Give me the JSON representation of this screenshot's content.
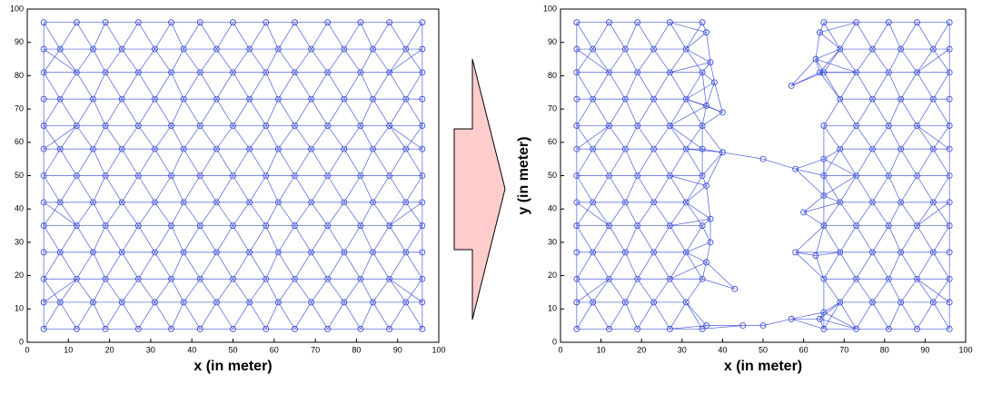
{
  "chart_data": [
    {
      "type": "scatter",
      "xlabel": "x (in meter)",
      "color": "#2b3fd6",
      "xlim": [
        0,
        100
      ],
      "xticks": [
        0,
        10,
        20,
        30,
        40,
        50,
        60,
        70,
        80,
        90,
        100
      ],
      "ylim": [
        0,
        100
      ],
      "yticks": [
        0,
        10,
        20,
        30,
        40,
        50,
        60,
        70,
        80,
        90,
        100
      ],
      "points": [
        [
          4,
          4
        ],
        [
          12,
          4
        ],
        [
          19,
          4
        ],
        [
          27,
          4
        ],
        [
          35,
          4
        ],
        [
          42,
          4
        ],
        [
          50,
          4
        ],
        [
          58,
          4
        ],
        [
          65,
          4
        ],
        [
          73,
          4
        ],
        [
          81,
          4
        ],
        [
          88,
          4
        ],
        [
          96,
          4
        ],
        [
          4,
          12
        ],
        [
          8,
          12
        ],
        [
          16,
          12
        ],
        [
          23,
          12
        ],
        [
          31,
          12
        ],
        [
          38,
          12
        ],
        [
          46,
          12
        ],
        [
          54,
          12
        ],
        [
          61,
          12
        ],
        [
          69,
          12
        ],
        [
          77,
          12
        ],
        [
          84,
          12
        ],
        [
          92,
          12
        ],
        [
          96,
          12
        ],
        [
          4,
          19
        ],
        [
          12,
          19
        ],
        [
          19,
          19
        ],
        [
          27,
          19
        ],
        [
          35,
          19
        ],
        [
          42,
          19
        ],
        [
          50,
          19
        ],
        [
          58,
          19
        ],
        [
          65,
          19
        ],
        [
          73,
          19
        ],
        [
          81,
          19
        ],
        [
          88,
          19
        ],
        [
          96,
          19
        ],
        [
          4,
          27
        ],
        [
          8,
          27
        ],
        [
          16,
          27
        ],
        [
          23,
          27
        ],
        [
          31,
          27
        ],
        [
          38,
          27
        ],
        [
          46,
          27
        ],
        [
          54,
          27
        ],
        [
          61,
          27
        ],
        [
          69,
          27
        ],
        [
          77,
          27
        ],
        [
          84,
          27
        ],
        [
          92,
          27
        ],
        [
          96,
          27
        ],
        [
          4,
          35
        ],
        [
          12,
          35
        ],
        [
          19,
          35
        ],
        [
          27,
          35
        ],
        [
          35,
          35
        ],
        [
          42,
          35
        ],
        [
          50,
          35
        ],
        [
          58,
          35
        ],
        [
          65,
          35
        ],
        [
          73,
          35
        ],
        [
          81,
          35
        ],
        [
          88,
          35
        ],
        [
          96,
          35
        ],
        [
          4,
          42
        ],
        [
          8,
          42
        ],
        [
          16,
          42
        ],
        [
          23,
          42
        ],
        [
          31,
          42
        ],
        [
          38,
          42
        ],
        [
          46,
          42
        ],
        [
          54,
          42
        ],
        [
          61,
          42
        ],
        [
          69,
          42
        ],
        [
          77,
          42
        ],
        [
          84,
          42
        ],
        [
          92,
          42
        ],
        [
          96,
          42
        ],
        [
          4,
          50
        ],
        [
          12,
          50
        ],
        [
          19,
          50
        ],
        [
          27,
          50
        ],
        [
          35,
          50
        ],
        [
          42,
          50
        ],
        [
          50,
          50
        ],
        [
          58,
          50
        ],
        [
          65,
          50
        ],
        [
          73,
          50
        ],
        [
          81,
          50
        ],
        [
          88,
          50
        ],
        [
          96,
          50
        ],
        [
          4,
          58
        ],
        [
          8,
          58
        ],
        [
          16,
          58
        ],
        [
          23,
          58
        ],
        [
          31,
          58
        ],
        [
          38,
          58
        ],
        [
          46,
          58
        ],
        [
          54,
          58
        ],
        [
          61,
          58
        ],
        [
          69,
          58
        ],
        [
          77,
          58
        ],
        [
          84,
          58
        ],
        [
          92,
          58
        ],
        [
          96,
          58
        ],
        [
          4,
          65
        ],
        [
          12,
          65
        ],
        [
          19,
          65
        ],
        [
          27,
          65
        ],
        [
          35,
          65
        ],
        [
          42,
          65
        ],
        [
          50,
          65
        ],
        [
          58,
          65
        ],
        [
          65,
          65
        ],
        [
          73,
          65
        ],
        [
          81,
          65
        ],
        [
          88,
          65
        ],
        [
          96,
          65
        ],
        [
          4,
          73
        ],
        [
          8,
          73
        ],
        [
          16,
          73
        ],
        [
          23,
          73
        ],
        [
          31,
          73
        ],
        [
          38,
          73
        ],
        [
          46,
          73
        ],
        [
          54,
          73
        ],
        [
          61,
          73
        ],
        [
          69,
          73
        ],
        [
          77,
          73
        ],
        [
          84,
          73
        ],
        [
          92,
          73
        ],
        [
          96,
          73
        ],
        [
          4,
          81
        ],
        [
          12,
          81
        ],
        [
          19,
          81
        ],
        [
          27,
          81
        ],
        [
          35,
          81
        ],
        [
          42,
          81
        ],
        [
          50,
          81
        ],
        [
          58,
          81
        ],
        [
          65,
          81
        ],
        [
          73,
          81
        ],
        [
          81,
          81
        ],
        [
          88,
          81
        ],
        [
          96,
          81
        ],
        [
          4,
          88
        ],
        [
          8,
          88
        ],
        [
          16,
          88
        ],
        [
          23,
          88
        ],
        [
          31,
          88
        ],
        [
          38,
          88
        ],
        [
          46,
          88
        ],
        [
          54,
          88
        ],
        [
          61,
          88
        ],
        [
          69,
          88
        ],
        [
          77,
          88
        ],
        [
          84,
          88
        ],
        [
          92,
          88
        ],
        [
          96,
          88
        ],
        [
          4,
          96
        ],
        [
          12,
          96
        ],
        [
          19,
          96
        ],
        [
          27,
          96
        ],
        [
          35,
          96
        ],
        [
          42,
          96
        ],
        [
          50,
          96
        ],
        [
          58,
          96
        ],
        [
          65,
          96
        ],
        [
          73,
          96
        ],
        [
          81,
          96
        ],
        [
          88,
          96
        ],
        [
          96,
          96
        ]
      ]
    },
    {
      "type": "scatter",
      "xlabel": "x (in meter)",
      "ylabel": "y (in meter)",
      "color": "#2b3fd6",
      "xlim": [
        0,
        100
      ],
      "xticks": [
        0,
        10,
        20,
        30,
        40,
        50,
        60,
        70,
        80,
        90,
        100
      ],
      "ylim": [
        0,
        100
      ],
      "yticks": [
        0,
        10,
        20,
        30,
        40,
        50,
        60,
        70,
        80,
        90,
        100
      ],
      "points": [
        [
          4,
          4
        ],
        [
          12,
          4
        ],
        [
          19,
          4
        ],
        [
          27,
          4
        ],
        [
          35,
          4
        ],
        [
          65,
          4
        ],
        [
          73,
          4
        ],
        [
          81,
          4
        ],
        [
          88,
          4
        ],
        [
          96,
          4
        ],
        [
          4,
          12
        ],
        [
          8,
          12
        ],
        [
          16,
          12
        ],
        [
          23,
          12
        ],
        [
          31,
          12
        ],
        [
          69,
          12
        ],
        [
          77,
          12
        ],
        [
          84,
          12
        ],
        [
          92,
          12
        ],
        [
          96,
          12
        ],
        [
          4,
          19
        ],
        [
          12,
          19
        ],
        [
          19,
          19
        ],
        [
          27,
          19
        ],
        [
          35,
          19
        ],
        [
          65,
          19
        ],
        [
          73,
          19
        ],
        [
          81,
          19
        ],
        [
          88,
          19
        ],
        [
          96,
          19
        ],
        [
          4,
          27
        ],
        [
          8,
          27
        ],
        [
          16,
          27
        ],
        [
          23,
          27
        ],
        [
          31,
          27
        ],
        [
          69,
          27
        ],
        [
          77,
          27
        ],
        [
          84,
          27
        ],
        [
          92,
          27
        ],
        [
          96,
          27
        ],
        [
          4,
          35
        ],
        [
          12,
          35
        ],
        [
          19,
          35
        ],
        [
          27,
          35
        ],
        [
          35,
          35
        ],
        [
          65,
          35
        ],
        [
          73,
          35
        ],
        [
          81,
          35
        ],
        [
          88,
          35
        ],
        [
          96,
          35
        ],
        [
          4,
          42
        ],
        [
          8,
          42
        ],
        [
          16,
          42
        ],
        [
          23,
          42
        ],
        [
          31,
          42
        ],
        [
          69,
          42
        ],
        [
          77,
          42
        ],
        [
          84,
          42
        ],
        [
          92,
          42
        ],
        [
          96,
          42
        ],
        [
          4,
          50
        ],
        [
          12,
          50
        ],
        [
          19,
          50
        ],
        [
          27,
          50
        ],
        [
          35,
          50
        ],
        [
          65,
          50
        ],
        [
          73,
          50
        ],
        [
          81,
          50
        ],
        [
          88,
          50
        ],
        [
          96,
          50
        ],
        [
          4,
          58
        ],
        [
          8,
          58
        ],
        [
          16,
          58
        ],
        [
          23,
          58
        ],
        [
          31,
          58
        ],
        [
          69,
          58
        ],
        [
          77,
          58
        ],
        [
          84,
          58
        ],
        [
          92,
          58
        ],
        [
          96,
          58
        ],
        [
          4,
          65
        ],
        [
          12,
          65
        ],
        [
          19,
          65
        ],
        [
          27,
          65
        ],
        [
          35,
          65
        ],
        [
          65,
          65
        ],
        [
          73,
          65
        ],
        [
          81,
          65
        ],
        [
          88,
          65
        ],
        [
          96,
          65
        ],
        [
          4,
          73
        ],
        [
          8,
          73
        ],
        [
          16,
          73
        ],
        [
          23,
          73
        ],
        [
          31,
          73
        ],
        [
          69,
          73
        ],
        [
          77,
          73
        ],
        [
          84,
          73
        ],
        [
          92,
          73
        ],
        [
          96,
          73
        ],
        [
          4,
          81
        ],
        [
          12,
          81
        ],
        [
          19,
          81
        ],
        [
          27,
          81
        ],
        [
          35,
          81
        ],
        [
          65,
          81
        ],
        [
          73,
          81
        ],
        [
          81,
          81
        ],
        [
          88,
          81
        ],
        [
          96,
          81
        ],
        [
          4,
          88
        ],
        [
          8,
          88
        ],
        [
          16,
          88
        ],
        [
          23,
          88
        ],
        [
          31,
          88
        ],
        [
          69,
          88
        ],
        [
          77,
          88
        ],
        [
          84,
          88
        ],
        [
          92,
          88
        ],
        [
          96,
          88
        ],
        [
          4,
          96
        ],
        [
          12,
          96
        ],
        [
          19,
          96
        ],
        [
          27,
          96
        ],
        [
          35,
          96
        ],
        [
          65,
          96
        ],
        [
          73,
          96
        ],
        [
          81,
          96
        ],
        [
          88,
          96
        ],
        [
          96,
          96
        ],
        [
          36,
          93
        ],
        [
          37,
          84
        ],
        [
          38,
          78
        ],
        [
          36,
          71
        ],
        [
          40,
          69
        ],
        [
          35,
          58
        ],
        [
          40,
          57
        ],
        [
          36,
          47
        ],
        [
          37,
          37
        ],
        [
          37,
          30
        ],
        [
          36,
          24
        ],
        [
          43,
          16
        ],
        [
          36,
          5
        ],
        [
          45,
          5
        ],
        [
          50,
          5
        ],
        [
          57,
          7
        ],
        [
          64,
          7
        ],
        [
          65,
          9
        ],
        [
          63,
          26
        ],
        [
          58,
          27
        ],
        [
          65,
          44
        ],
        [
          60,
          39
        ],
        [
          65,
          55
        ],
        [
          57,
          77
        ],
        [
          64,
          93
        ],
        [
          63,
          85
        ],
        [
          64,
          81
        ],
        [
          50,
          55
        ],
        [
          58,
          52
        ]
      ]
    }
  ]
}
